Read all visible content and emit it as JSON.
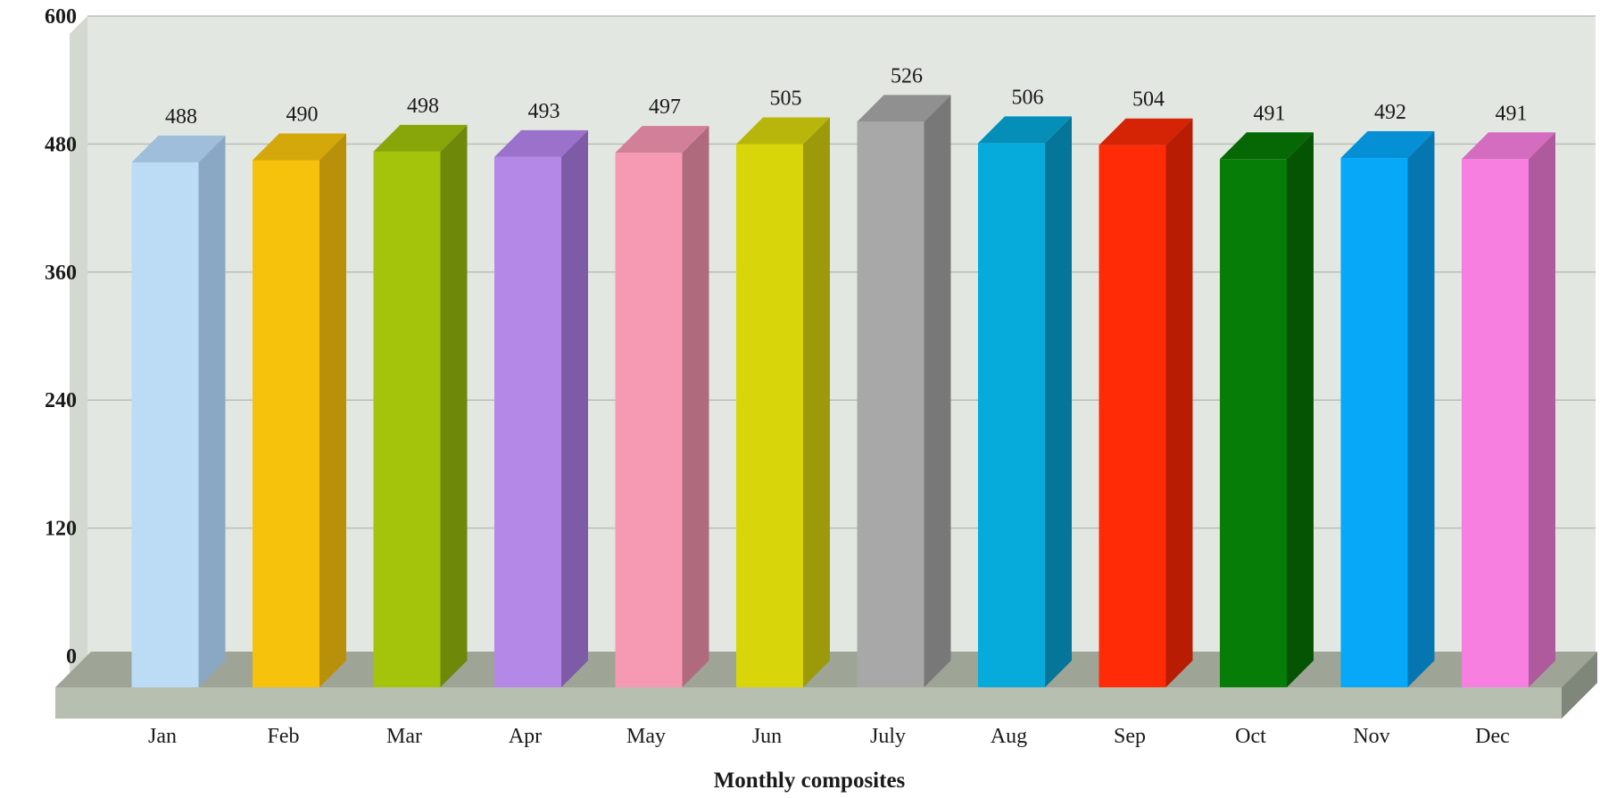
{
  "chart_data": {
    "type": "bar",
    "style": "3d",
    "title": "",
    "xlabel": "Monthly composites",
    "ylabel": "",
    "ylim": [
      0,
      600
    ],
    "yticks": [
      0,
      120,
      240,
      360,
      480,
      600
    ],
    "grid": true,
    "legend": "none",
    "categories": [
      "Jan",
      "Feb",
      "Mar",
      "Apr",
      "May",
      "Jun",
      "July",
      "Aug",
      "Sep",
      "Oct",
      "Nov",
      "Dec"
    ],
    "values": [
      488,
      490,
      498,
      493,
      497,
      505,
      526,
      506,
      504,
      491,
      492,
      491
    ],
    "data_labels": [
      "488",
      "490",
      "498",
      "493",
      "497",
      "505",
      "526",
      "506",
      "504",
      "491",
      "492",
      "491"
    ],
    "bar_colors": [
      {
        "front": "#bcdcf5",
        "side": "#8aa8c4",
        "top": "#9fbedb"
      },
      {
        "front": "#f7c20c",
        "side": "#b8900a",
        "top": "#d4a70a"
      },
      {
        "front": "#a3c40a",
        "side": "#6e880a",
        "top": "#88a60a"
      },
      {
        "front": "#b388e6",
        "side": "#7d5ba6",
        "top": "#9a72cc"
      },
      {
        "front": "#f59ab2",
        "side": "#b06a7e",
        "top": "#d2809a"
      },
      {
        "front": "#d8d60a",
        "side": "#9c9a0a",
        "top": "#b8b60a"
      },
      {
        "front": "#a8a8a8",
        "side": "#787878",
        "top": "#909090"
      },
      {
        "front": "#06aadb",
        "side": "#057699",
        "top": "#058fb8"
      },
      {
        "front": "#ff2a06",
        "side": "#b81d04",
        "top": "#d42305"
      },
      {
        "front": "#067d06",
        "side": "#045404",
        "top": "#056805"
      },
      {
        "front": "#06a8f7",
        "side": "#0576b0",
        "top": "#058fd4"
      },
      {
        "front": "#f77fe0",
        "side": "#b05a9e",
        "top": "#d46cc0"
      }
    ],
    "colors": {
      "wall": "#e3e7e1",
      "wall_side": "#d3d8d0",
      "floor_top": "#9ea596",
      "floor_front": "#b7bfb0",
      "floor_side": "#7f867a",
      "grid": "#b9beb6"
    }
  }
}
